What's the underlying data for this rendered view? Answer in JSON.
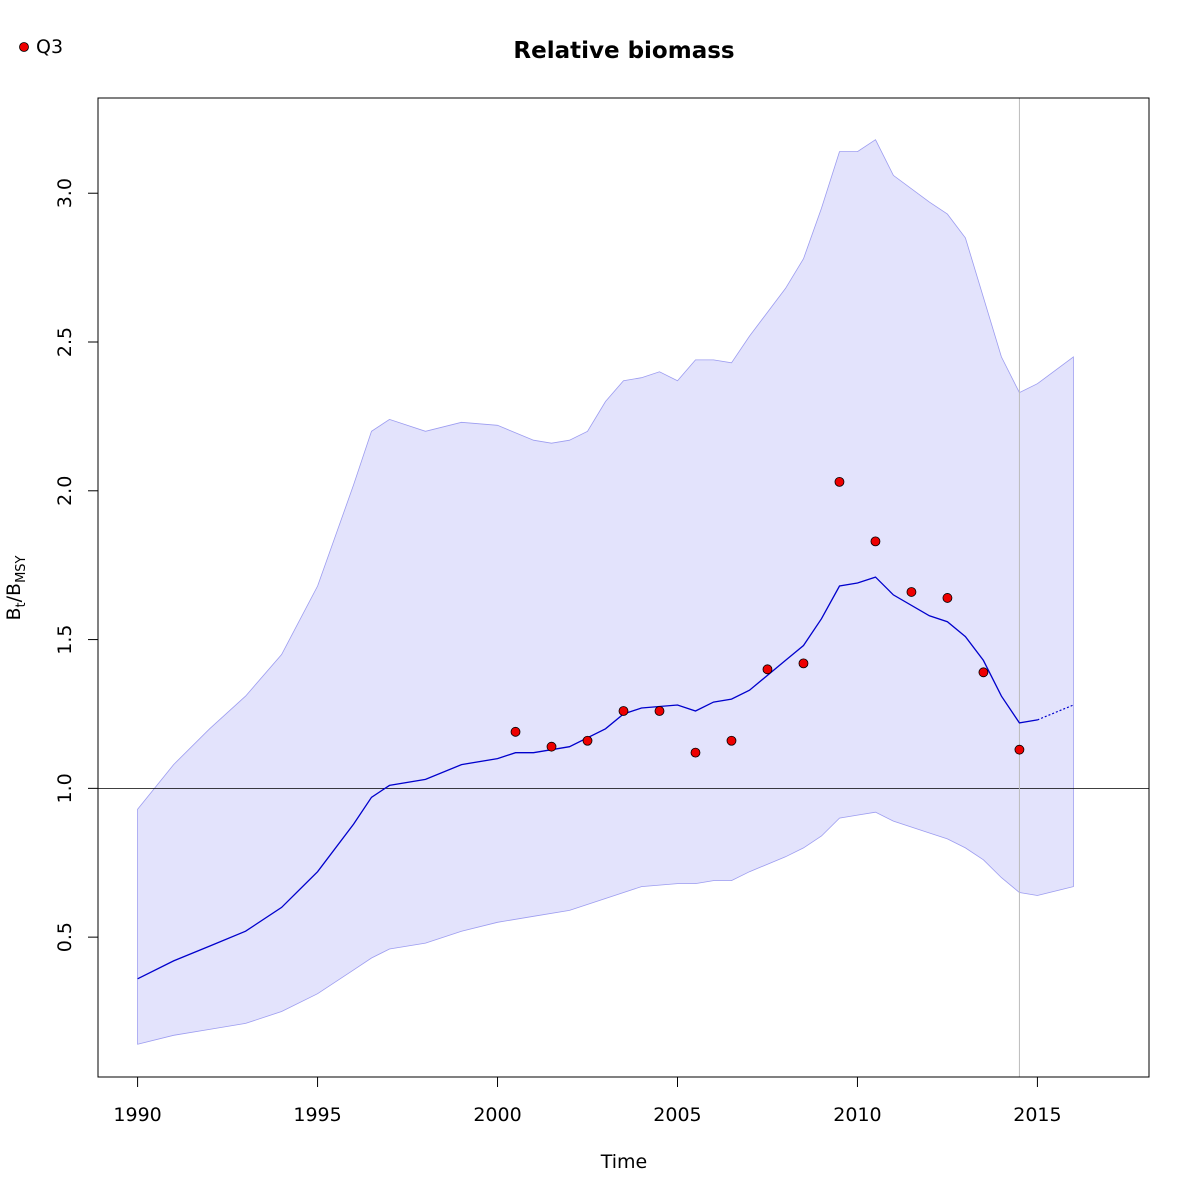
{
  "chart_data": {
    "type": "line",
    "title": "Relative biomass",
    "xlabel": "Time",
    "ylabel": {
      "main": "B",
      "sub1": "t",
      "sep": "/B",
      "sub2": "MSY"
    },
    "xlim": [
      1988.9,
      2018.1
    ],
    "ylim": [
      0.03,
      3.32
    ],
    "xticks": [
      1990,
      1995,
      2000,
      2005,
      2010,
      2015
    ],
    "xtick_labels": [
      "1990",
      "1995",
      "2000",
      "2005",
      "2010",
      "2015"
    ],
    "yticks": [
      0.5,
      1.0,
      1.5,
      2.0,
      2.5,
      3.0
    ],
    "ytick_labels": [
      "0.5",
      "1.0",
      "1.5",
      "2.0",
      "2.5",
      "3.0"
    ],
    "reference_line_y": 1.0,
    "reference_line_x": 2014.5,
    "colors": {
      "line": "#0000cc",
      "band_fill": "#e3e3fc",
      "band_stroke": "#9c9cf0",
      "points": "#ee0000",
      "reference": "#000000",
      "vline": "#bbbbbb"
    },
    "legend": {
      "position": "top-left",
      "entries": [
        "Q3"
      ]
    },
    "estimate": {
      "x": [
        1990,
        1991,
        1992,
        1993,
        1994,
        1995,
        1996,
        1996.5,
        1997,
        1998,
        1999,
        2000,
        2000.5,
        2001,
        2002,
        2003,
        2003.5,
        2004,
        2005,
        2005.5,
        2006,
        2006.5,
        2007,
        2008,
        2008.5,
        2009,
        2009.5,
        2010,
        2010.5,
        2011,
        2012,
        2012.5,
        2013,
        2013.5,
        2014,
        2014.5,
        2015
      ],
      "y": [
        0.36,
        0.42,
        0.47,
        0.52,
        0.6,
        0.72,
        0.88,
        0.97,
        1.01,
        1.03,
        1.08,
        1.1,
        1.12,
        1.12,
        1.14,
        1.2,
        1.25,
        1.27,
        1.28,
        1.26,
        1.29,
        1.3,
        1.33,
        1.43,
        1.48,
        1.57,
        1.68,
        1.69,
        1.71,
        1.65,
        1.58,
        1.56,
        1.51,
        1.43,
        1.31,
        1.22,
        1.23
      ]
    },
    "projection": {
      "x": [
        2015,
        2016
      ],
      "y": [
        1.23,
        1.28
      ]
    },
    "ci_upper": {
      "x": [
        1990,
        1991,
        1992,
        1993,
        1994,
        1995,
        1996,
        1996.5,
        1997,
        1998,
        1999,
        2000,
        2001,
        2001.5,
        2002,
        2002.5,
        2003,
        2003.5,
        2004,
        2004.5,
        2005,
        2005.5,
        2006,
        2006.5,
        2007,
        2008,
        2008.5,
        2009,
        2009.5,
        2010,
        2010.5,
        2011,
        2012,
        2012.5,
        2013,
        2013.5,
        2014,
        2014.5,
        2015,
        2016
      ],
      "y": [
        0.93,
        1.08,
        1.2,
        1.31,
        1.45,
        1.68,
        2.02,
        2.2,
        2.24,
        2.2,
        2.23,
        2.22,
        2.17,
        2.16,
        2.17,
        2.2,
        2.3,
        2.37,
        2.38,
        2.4,
        2.37,
        2.44,
        2.44,
        2.43,
        2.52,
        2.68,
        2.78,
        2.95,
        3.14,
        3.14,
        3.18,
        3.06,
        2.97,
        2.93,
        2.85,
        2.65,
        2.45,
        2.33,
        2.36,
        2.45
      ]
    },
    "ci_lower": {
      "x": [
        1990,
        1991,
        1992,
        1993,
        1994,
        1995,
        1996,
        1996.5,
        1997,
        1998,
        1999,
        2000,
        2001,
        2002,
        2003,
        2004,
        2005,
        2005.5,
        2006,
        2006.5,
        2007,
        2008,
        2008.5,
        2009,
        2009.5,
        2010,
        2010.5,
        2011,
        2012,
        2012.5,
        2013,
        2013.5,
        2014,
        2014.5,
        2015,
        2016
      ],
      "y": [
        0.14,
        0.17,
        0.19,
        0.21,
        0.25,
        0.31,
        0.39,
        0.43,
        0.46,
        0.48,
        0.52,
        0.55,
        0.57,
        0.59,
        0.63,
        0.67,
        0.68,
        0.68,
        0.69,
        0.69,
        0.72,
        0.77,
        0.8,
        0.84,
        0.9,
        0.91,
        0.92,
        0.89,
        0.85,
        0.83,
        0.8,
        0.76,
        0.7,
        0.65,
        0.64,
        0.67
      ]
    },
    "observations": {
      "name": "Q3",
      "x": [
        2000.5,
        2001.5,
        2002.5,
        2003.5,
        2004.5,
        2005.5,
        2006.5,
        2007.5,
        2008.5,
        2009.5,
        2010.5,
        2011.5,
        2012.5,
        2013.5,
        2014.5
      ],
      "y": [
        1.19,
        1.14,
        1.16,
        1.26,
        1.26,
        1.12,
        1.16,
        1.4,
        1.42,
        2.03,
        1.83,
        1.66,
        1.64,
        1.39,
        1.13
      ]
    }
  }
}
